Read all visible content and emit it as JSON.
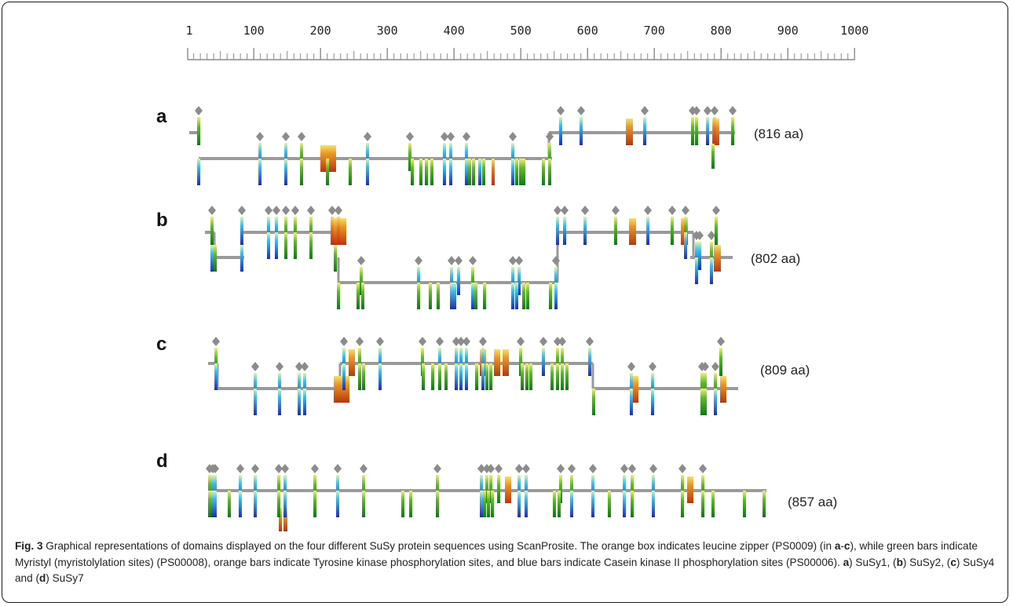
{
  "ruler": {
    "ticks": [
      "1",
      "100",
      "200",
      "300",
      "400",
      "500",
      "600",
      "700",
      "800",
      "900",
      "1000"
    ]
  },
  "colors": {
    "backbone": "#9a9a9a",
    "diamond": "#8a8a8a",
    "myristyl": "#1e8c1e",
    "casein": "#1a3fbf",
    "tyrosine": "#cc4a10",
    "leucine_zipper": "#c8641a"
  },
  "panels": [
    {
      "id": "a",
      "letter": "a",
      "length_label": "(816 aa)",
      "length": 816
    },
    {
      "id": "b",
      "letter": "b",
      "length_label": "(802 aa)",
      "length": 802
    },
    {
      "id": "c",
      "letter": "c",
      "length_label": "(809 aa)",
      "length": 809
    },
    {
      "id": "d",
      "letter": "d",
      "length_label": "(857 aa)",
      "length": 857
    }
  ],
  "caption": {
    "fig_label": "Fig. 3",
    "t1": " Graphical representations of domains displayed on the four different SuSy protein sequences using ScanProsite. The orange box indicates leucine zipper (PS0009) (in ",
    "ac1": "a",
    "t2": "-",
    "ac2": "c",
    "t3": "), while green bars indicate Myristyl (myristolylation sites) (PS00008), orange bars indicate Tyrosine kinase phosphorylation sites, and blue bars indicate Casein kinase II phosphorylation sites (PS00006). ",
    "la": "a",
    "t4": ") SuSy1, (",
    "lb": "b",
    "t5": ") SuSy2, (",
    "lc": "c",
    "t6": ") SuSy4 and (",
    "ld": "d",
    "t7": ") SuSy7"
  }
}
